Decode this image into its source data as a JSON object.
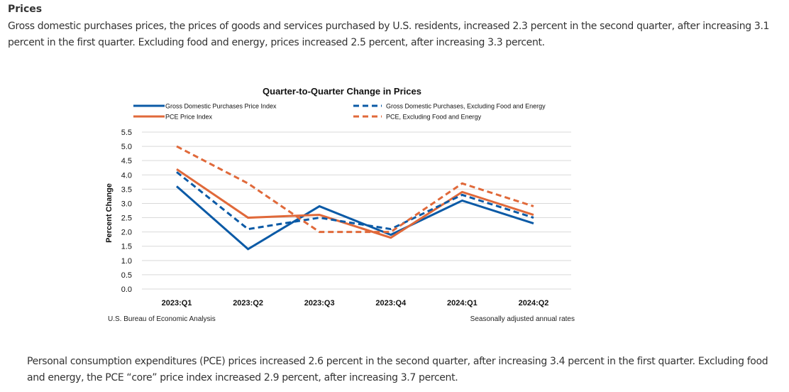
{
  "section": {
    "heading": "Prices",
    "intro": "Gross domestic purchases prices, the prices of goods and services purchased by U.S. residents, increased 2.3 percent in the second quarter, after increasing 3.1 percent in the first quarter. Excluding food and energy, prices increased 2.5 percent, after increasing 3.3 percent.",
    "outro": "Personal consumption expenditures (PCE) prices increased 2.6 percent in the second quarter, after increasing 3.4 percent in the first quarter. Excluding food and energy, the PCE “core” price index increased 2.9 percent, after increasing 3.7 percent."
  },
  "colors": {
    "blue": "#0b5aa6",
    "orange": "#e0693a",
    "grid": "#d9d9d9"
  },
  "chart_data": {
    "type": "line",
    "title": "Quarter-to-Quarter Change in Prices",
    "xlabel": "",
    "ylabel": "Percent Change",
    "categories": [
      "2023:Q1",
      "2023:Q2",
      "2023:Q3",
      "2023:Q4",
      "2024:Q1",
      "2024:Q2"
    ],
    "ylim": [
      0,
      5.5
    ],
    "yticks": [
      "0.0",
      "0.5",
      "1.0",
      "1.5",
      "2.0",
      "2.5",
      "3.0",
      "3.5",
      "4.0",
      "4.5",
      "5.0",
      "5.5"
    ],
    "grid": true,
    "legend_position": "top",
    "series": [
      {
        "name": "Gross Domestic Purchases Price Index",
        "color": "#0b5aa6",
        "style": "solid",
        "values": [
          3.6,
          1.4,
          2.9,
          1.9,
          3.1,
          2.3
        ]
      },
      {
        "name": "PCE Price Index",
        "color": "#e0693a",
        "style": "solid",
        "values": [
          4.2,
          2.5,
          2.6,
          1.8,
          3.4,
          2.6
        ]
      },
      {
        "name": "Gross Domestic Purchases, Excluding Food and Energy",
        "color": "#0b5aa6",
        "style": "dashed",
        "values": [
          4.1,
          2.1,
          2.5,
          2.1,
          3.3,
          2.5
        ]
      },
      {
        "name": "PCE, Excluding Food and Energy",
        "color": "#e0693a",
        "style": "dashed",
        "values": [
          5.0,
          3.7,
          2.0,
          2.0,
          3.7,
          2.9
        ]
      }
    ],
    "source": "U.S. Bureau of Economic Analysis",
    "note": "Seasonally adjusted annual rates"
  }
}
